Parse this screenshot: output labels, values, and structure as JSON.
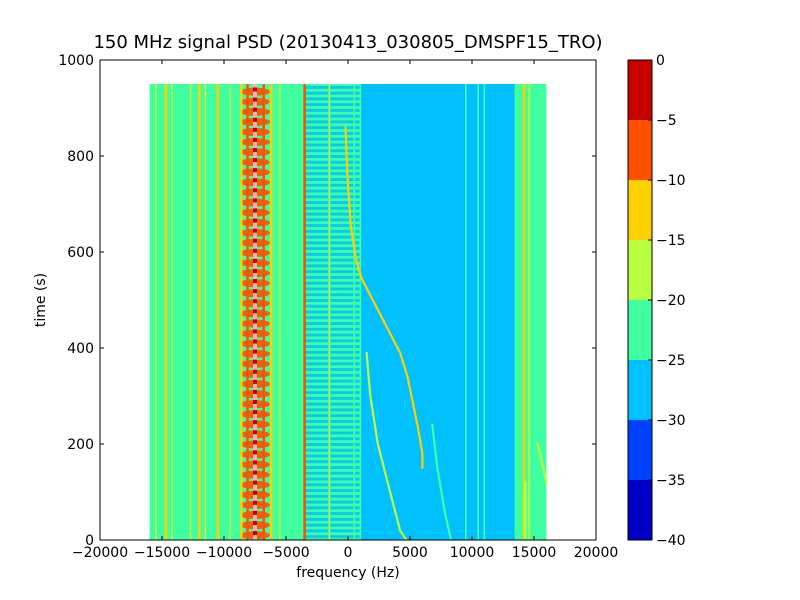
{
  "chart_data": {
    "type": "heatmap",
    "title": "150 MHz signal PSD (20130413_030805_DMSPF15_TRO)",
    "xlabel": "frequency (Hz)",
    "ylabel": "time (s)",
    "xlim": [
      -20000,
      20000
    ],
    "ylim": [
      0,
      1000
    ],
    "x_ticks": [
      -20000,
      -15000,
      -10000,
      -5000,
      0,
      5000,
      10000,
      15000,
      20000
    ],
    "x_tick_labels": [
      "−20000",
      "−15000",
      "−10000",
      "−5000",
      "0",
      "5000",
      "10000",
      "15000",
      "20000"
    ],
    "y_ticks": [
      0,
      200,
      400,
      600,
      800,
      1000
    ],
    "y_tick_labels": [
      "0",
      "200",
      "400",
      "600",
      "800",
      "1000"
    ],
    "data_extent": {
      "x": [
        -16000,
        16000
      ],
      "y": [
        0,
        950
      ]
    },
    "colorbar": {
      "levels": [
        -40,
        -35,
        -30,
        -25,
        -20,
        -15,
        -10,
        -5,
        0
      ],
      "tick_labels": [
        "−40",
        "−35",
        "−30",
        "−25",
        "−20",
        "−15",
        "−10",
        "−5",
        "0"
      ],
      "colors": [
        "#0000c8",
        "#0040ff",
        "#00c0ff",
        "#40ffa0",
        "#b8ff40",
        "#ffd000",
        "#ff5000",
        "#c80000"
      ]
    },
    "regions": [
      {
        "x": [
          -16000,
          -3500
        ],
        "level": -22.5
      },
      {
        "x": [
          -3500,
          1000
        ],
        "level": -22.5,
        "striated_with": -27.5
      },
      {
        "x": [
          1000,
          9500
        ],
        "level": -27.5
      },
      {
        "x": [
          9500,
          13500
        ],
        "level": -27.5
      },
      {
        "x": [
          13500,
          16000
        ],
        "level": -22.5
      }
    ],
    "vertical_lines": [
      {
        "x": -15500,
        "level": -17.5
      },
      {
        "x": -14700,
        "level": -12.5
      },
      {
        "x": -14200,
        "level": -17.5
      },
      {
        "x": -12700,
        "level": -17.5
      },
      {
        "x": -12000,
        "level": -12.5
      },
      {
        "x": -11500,
        "level": -17.5
      },
      {
        "x": -10500,
        "level": -12.5
      },
      {
        "x": -9500,
        "level": -17.5
      },
      {
        "x": -8600,
        "level": -12.5
      },
      {
        "x": -8100,
        "level": -7.5
      },
      {
        "x": -7500,
        "level": -2.5
      },
      {
        "x": -6800,
        "level": -7.5
      },
      {
        "x": -6200,
        "level": -12.5
      },
      {
        "x": -5500,
        "level": -17.5
      },
      {
        "x": -3500,
        "level": -7.5
      },
      {
        "x": -1500,
        "level": -17.5
      },
      {
        "x": 500,
        "level": -22.5
      },
      {
        "x": 1000,
        "level": -22.5
      },
      {
        "x": 9500,
        "level": -22.5
      },
      {
        "x": 10500,
        "level": -22.5
      },
      {
        "x": 11000,
        "level": -22.5
      },
      {
        "x": 13500,
        "level": -22.5
      },
      {
        "x": 14200,
        "level": -12.5
      },
      {
        "x": 14600,
        "level": -17.5
      }
    ],
    "tracks": [
      {
        "level": -12.5,
        "points": [
          [
            -200,
            860
          ],
          [
            -50,
            760
          ],
          [
            200,
            660
          ],
          [
            600,
            590
          ],
          [
            1100,
            545
          ],
          [
            1800,
            510
          ],
          [
            2600,
            470
          ],
          [
            3400,
            430
          ],
          [
            4200,
            390
          ],
          [
            4800,
            340
          ],
          [
            5200,
            290
          ],
          [
            5600,
            240
          ],
          [
            6000,
            180
          ],
          [
            6000,
            150
          ]
        ]
      },
      {
        "level": -17.5,
        "points": [
          [
            1500,
            390
          ],
          [
            1800,
            300
          ],
          [
            2400,
            200
          ],
          [
            3000,
            140
          ],
          [
            3600,
            80
          ],
          [
            4200,
            20
          ],
          [
            4700,
            0
          ]
        ]
      },
      {
        "level": -22.5,
        "points": [
          [
            6800,
            240
          ],
          [
            7200,
            150
          ],
          [
            7800,
            60
          ],
          [
            8300,
            0
          ]
        ]
      },
      {
        "level": -17.5,
        "points": [
          [
            14300,
            120
          ],
          [
            14300,
            0
          ]
        ]
      },
      {
        "level": -17.5,
        "points": [
          [
            15300,
            200
          ],
          [
            16000,
            120
          ]
        ]
      }
    ]
  }
}
